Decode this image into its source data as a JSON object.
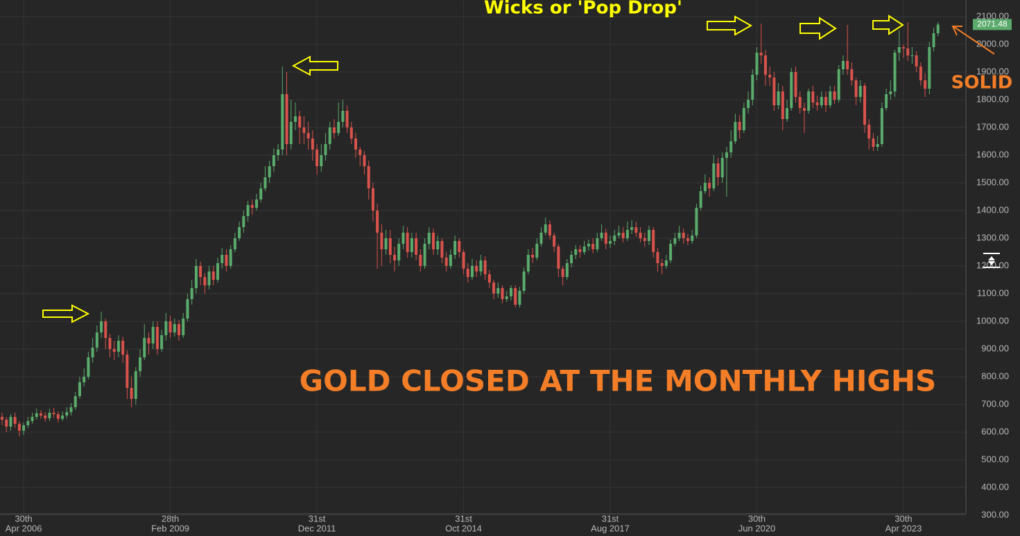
{
  "chart_data": {
    "type": "candlestick",
    "annotations": [
      "Wicks or 'Pop Drop'",
      "GOLD CLOSED AT THE MONTHLY HIGHS",
      "SOLID"
    ],
    "annotation_colors": [
      "#ffff00",
      "#f47e27",
      "#f47e27"
    ],
    "up_color": "#5aab6c",
    "down_color": "#d9534c",
    "grid": true,
    "ylim": [
      300,
      2160
    ],
    "yticks": [
      {
        "value": 300,
        "label": "300.00"
      },
      {
        "value": 400,
        "label": "400.00"
      },
      {
        "value": 500,
        "label": "500.00"
      },
      {
        "value": 600,
        "label": "600.00"
      },
      {
        "value": 700,
        "label": "700.00"
      },
      {
        "value": 800,
        "label": "800.00"
      },
      {
        "value": 900,
        "label": "900.00"
      },
      {
        "value": 1000,
        "label": "1000.00"
      },
      {
        "value": 1100,
        "label": "1100.00"
      },
      {
        "value": 1200,
        "label": "1200.00"
      },
      {
        "value": 1300,
        "label": "1300.00"
      },
      {
        "value": 1400,
        "label": "1400.00"
      },
      {
        "value": 1500,
        "label": "1500.00"
      },
      {
        "value": 1600,
        "label": "1600.00"
      },
      {
        "value": 1700,
        "label": "1700.00"
      },
      {
        "value": 1800,
        "label": "1800.00"
      },
      {
        "value": 1900,
        "label": "1900.00"
      },
      {
        "value": 2000,
        "label": "2000.00"
      },
      {
        "value": 2100,
        "label": "2100.00"
      }
    ],
    "xticks": [
      {
        "value": 5,
        "label": [
          "30th",
          "Apr 2006"
        ]
      },
      {
        "value": 39,
        "label": [
          "28th",
          "Feb 2009"
        ]
      },
      {
        "value": 73,
        "label": [
          "31st",
          "Dec 2011"
        ]
      },
      {
        "value": 107,
        "label": [
          "31st",
          "Oct 2014"
        ]
      },
      {
        "value": 141,
        "label": [
          "31st",
          "Aug 2017"
        ]
      },
      {
        "value": 175,
        "label": [
          "30th",
          "Jun 2020"
        ]
      },
      {
        "value": 209,
        "label": [
          "30th",
          "Apr 2023"
        ]
      }
    ],
    "open": [
      655,
      645,
      620,
      655,
      630,
      605,
      625,
      640,
      655,
      668,
      660,
      650,
      670,
      665,
      648,
      660,
      672,
      690,
      730,
      780,
      800,
      870,
      905,
      960,
      1000,
      940,
      900,
      890,
      930,
      880,
      760,
      720,
      820,
      870,
      940,
      920,
      980,
      900,
      950,
      1000,
      960,
      990,
      950,
      1010,
      1080,
      1120,
      1200,
      1160,
      1130,
      1180,
      1150,
      1210,
      1240,
      1200,
      1260,
      1300,
      1340,
      1380,
      1420,
      1410,
      1440,
      1480,
      1520,
      1560,
      1600,
      1620,
      1820,
      1640,
      1720,
      1740,
      1700,
      1680,
      1660,
      1620,
      1560,
      1600,
      1640,
      1700,
      1680,
      1720,
      1760,
      1700,
      1660,
      1620,
      1600,
      1560,
      1480,
      1400,
      1320,
      1260,
      1300,
      1240,
      1220,
      1280,
      1320,
      1250,
      1300,
      1240,
      1200,
      1280,
      1320,
      1260,
      1290,
      1230,
      1200,
      1240,
      1290,
      1250,
      1190,
      1160,
      1200,
      1180,
      1220,
      1170,
      1140,
      1100,
      1120,
      1080,
      1090,
      1120,
      1060,
      1110,
      1180,
      1240,
      1230,
      1280,
      1320,
      1350,
      1310,
      1270,
      1190,
      1160,
      1210,
      1240,
      1260,
      1250,
      1270,
      1280,
      1260,
      1300,
      1320,
      1280,
      1290,
      1310,
      1320,
      1300,
      1330,
      1340,
      1320,
      1300,
      1290,
      1330,
      1250,
      1210,
      1200,
      1220,
      1280,
      1300,
      1320,
      1300,
      1290,
      1310,
      1410,
      1470,
      1500,
      1480,
      1570,
      1520,
      1590,
      1610,
      1650,
      1720,
      1690,
      1770,
      1800,
      1890,
      1970,
      1960,
      1890,
      1880,
      1780,
      1830,
      1730,
      1770,
      1900,
      1810,
      1770,
      1760,
      1830,
      1790,
      1780,
      1810,
      1780,
      1830,
      1800,
      1910,
      1940,
      1910,
      1870,
      1810,
      1850,
      1710,
      1660,
      1630,
      1640,
      1770,
      1820,
      1830,
      1970,
      1990,
      1985,
      1960,
      1960,
      1920,
      1870,
      1840,
      1990,
      2040
    ],
    "high": [
      670,
      655,
      665,
      670,
      640,
      635,
      655,
      670,
      685,
      680,
      672,
      685,
      688,
      675,
      675,
      690,
      705,
      745,
      800,
      830,
      890,
      940,
      985,
      1035,
      1010,
      955,
      930,
      950,
      945,
      895,
      800,
      835,
      900,
      990,
      960,
      1000,
      1000,
      970,
      1030,
      1020,
      1010,
      1005,
      1030,
      1100,
      1150,
      1225,
      1215,
      1175,
      1200,
      1200,
      1230,
      1265,
      1260,
      1275,
      1320,
      1360,
      1400,
      1435,
      1440,
      1460,
      1500,
      1560,
      1580,
      1625,
      1640,
      1920,
      1900,
      1800,
      1790,
      1760,
      1740,
      1720,
      1690,
      1640,
      1640,
      1680,
      1720,
      1730,
      1790,
      1800,
      1780,
      1720,
      1680,
      1630,
      1615,
      1580,
      1500,
      1425,
      1350,
      1330,
      1330,
      1270,
      1300,
      1345,
      1340,
      1320,
      1320,
      1260,
      1300,
      1340,
      1335,
      1310,
      1300,
      1250,
      1260,
      1310,
      1300,
      1260,
      1210,
      1225,
      1220,
      1240,
      1235,
      1185,
      1150,
      1140,
      1130,
      1110,
      1130,
      1130,
      1125,
      1195,
      1260,
      1265,
      1300,
      1340,
      1375,
      1365,
      1320,
      1280,
      1200,
      1225,
      1255,
      1275,
      1275,
      1290,
      1295,
      1300,
      1320,
      1350,
      1335,
      1310,
      1330,
      1345,
      1340,
      1360,
      1365,
      1360,
      1340,
      1320,
      1345,
      1340,
      1265,
      1225,
      1240,
      1295,
      1320,
      1345,
      1335,
      1315,
      1330,
      1425,
      1490,
      1530,
      1520,
      1600,
      1590,
      1610,
      1630,
      1690,
      1750,
      1745,
      1790,
      1830,
      1910,
      1990,
      2075,
      1980,
      1920,
      1900,
      1860,
      1850,
      1800,
      1915,
      1920,
      1830,
      1790,
      1840,
      1850,
      1815,
      1830,
      1830,
      1850,
      1850,
      1925,
      1960,
      2070,
      1935,
      1880,
      1870,
      1860,
      1730,
      1680,
      1670,
      1790,
      1840,
      1870,
      1980,
      2050,
      2000,
      2080,
      1990,
      1975,
      1935,
      1895,
      2010,
      2060,
      2080
    ],
    "low": [
      625,
      600,
      605,
      615,
      585,
      590,
      615,
      630,
      645,
      648,
      638,
      640,
      652,
      635,
      640,
      650,
      660,
      680,
      720,
      765,
      790,
      850,
      890,
      940,
      900,
      870,
      860,
      870,
      850,
      720,
      690,
      700,
      800,
      860,
      880,
      900,
      880,
      890,
      930,
      940,
      945,
      930,
      940,
      1000,
      1060,
      1100,
      1130,
      1100,
      1115,
      1130,
      1140,
      1190,
      1180,
      1190,
      1250,
      1290,
      1320,
      1360,
      1385,
      1400,
      1430,
      1470,
      1500,
      1540,
      1580,
      1600,
      1600,
      1620,
      1690,
      1640,
      1640,
      1620,
      1580,
      1530,
      1540,
      1580,
      1620,
      1660,
      1670,
      1700,
      1680,
      1640,
      1590,
      1560,
      1530,
      1440,
      1360,
      1190,
      1200,
      1240,
      1210,
      1180,
      1200,
      1260,
      1230,
      1230,
      1220,
      1180,
      1190,
      1260,
      1240,
      1240,
      1210,
      1180,
      1190,
      1225,
      1230,
      1170,
      1140,
      1150,
      1160,
      1165,
      1150,
      1120,
      1080,
      1085,
      1065,
      1070,
      1075,
      1050,
      1050,
      1100,
      1170,
      1210,
      1220,
      1270,
      1310,
      1295,
      1250,
      1160,
      1130,
      1150,
      1195,
      1225,
      1230,
      1240,
      1255,
      1245,
      1250,
      1290,
      1260,
      1265,
      1275,
      1300,
      1285,
      1290,
      1315,
      1305,
      1285,
      1270,
      1275,
      1230,
      1180,
      1170,
      1190,
      1210,
      1270,
      1290,
      1280,
      1275,
      1280,
      1300,
      1400,
      1460,
      1450,
      1470,
      1490,
      1500,
      1450,
      1590,
      1640,
      1660,
      1680,
      1750,
      1780,
      1870,
      1930,
      1850,
      1850,
      1760,
      1765,
      1690,
      1720,
      1760,
      1790,
      1750,
      1680,
      1750,
      1770,
      1760,
      1770,
      1755,
      1770,
      1785,
      1790,
      1890,
      1890,
      1850,
      1780,
      1790,
      1680,
      1620,
      1615,
      1615,
      1630,
      1760,
      1800,
      1810,
      1940,
      1950,
      1940,
      1930,
      1900,
      1850,
      1810,
      1820,
      1975,
      2030
    ],
    "close": [
      645,
      620,
      655,
      630,
      605,
      625,
      640,
      655,
      668,
      660,
      650,
      670,
      665,
      648,
      660,
      672,
      690,
      730,
      780,
      800,
      870,
      905,
      960,
      1000,
      940,
      900,
      890,
      930,
      880,
      760,
      720,
      820,
      870,
      940,
      920,
      980,
      900,
      950,
      1000,
      960,
      990,
      950,
      1010,
      1080,
      1120,
      1200,
      1160,
      1130,
      1180,
      1150,
      1210,
      1240,
      1200,
      1260,
      1300,
      1340,
      1380,
      1420,
      1410,
      1440,
      1480,
      1520,
      1560,
      1600,
      1620,
      1820,
      1640,
      1720,
      1740,
      1700,
      1680,
      1660,
      1620,
      1560,
      1600,
      1640,
      1700,
      1680,
      1720,
      1760,
      1700,
      1660,
      1620,
      1600,
      1560,
      1480,
      1400,
      1320,
      1260,
      1300,
      1240,
      1220,
      1280,
      1320,
      1250,
      1300,
      1240,
      1200,
      1280,
      1320,
      1260,
      1290,
      1230,
      1200,
      1240,
      1290,
      1250,
      1190,
      1160,
      1200,
      1180,
      1220,
      1170,
      1140,
      1100,
      1120,
      1080,
      1090,
      1120,
      1060,
      1110,
      1180,
      1240,
      1230,
      1280,
      1320,
      1350,
      1310,
      1270,
      1190,
      1160,
      1210,
      1240,
      1260,
      1250,
      1270,
      1280,
      1260,
      1300,
      1320,
      1280,
      1290,
      1310,
      1320,
      1300,
      1330,
      1340,
      1320,
      1300,
      1290,
      1330,
      1250,
      1210,
      1200,
      1220,
      1280,
      1300,
      1320,
      1300,
      1290,
      1310,
      1410,
      1470,
      1500,
      1480,
      1570,
      1520,
      1590,
      1610,
      1650,
      1720,
      1690,
      1770,
      1800,
      1890,
      1970,
      1960,
      1890,
      1880,
      1780,
      1830,
      1730,
      1770,
      1900,
      1810,
      1770,
      1760,
      1830,
      1790,
      1780,
      1810,
      1780,
      1830,
      1800,
      1910,
      1940,
      1910,
      1870,
      1810,
      1850,
      1710,
      1660,
      1630,
      1640,
      1770,
      1820,
      1830,
      1970,
      1990,
      1985,
      1960,
      1960,
      1920,
      1870,
      1840,
      1990,
      2040,
      2071.48
    ]
  }
}
